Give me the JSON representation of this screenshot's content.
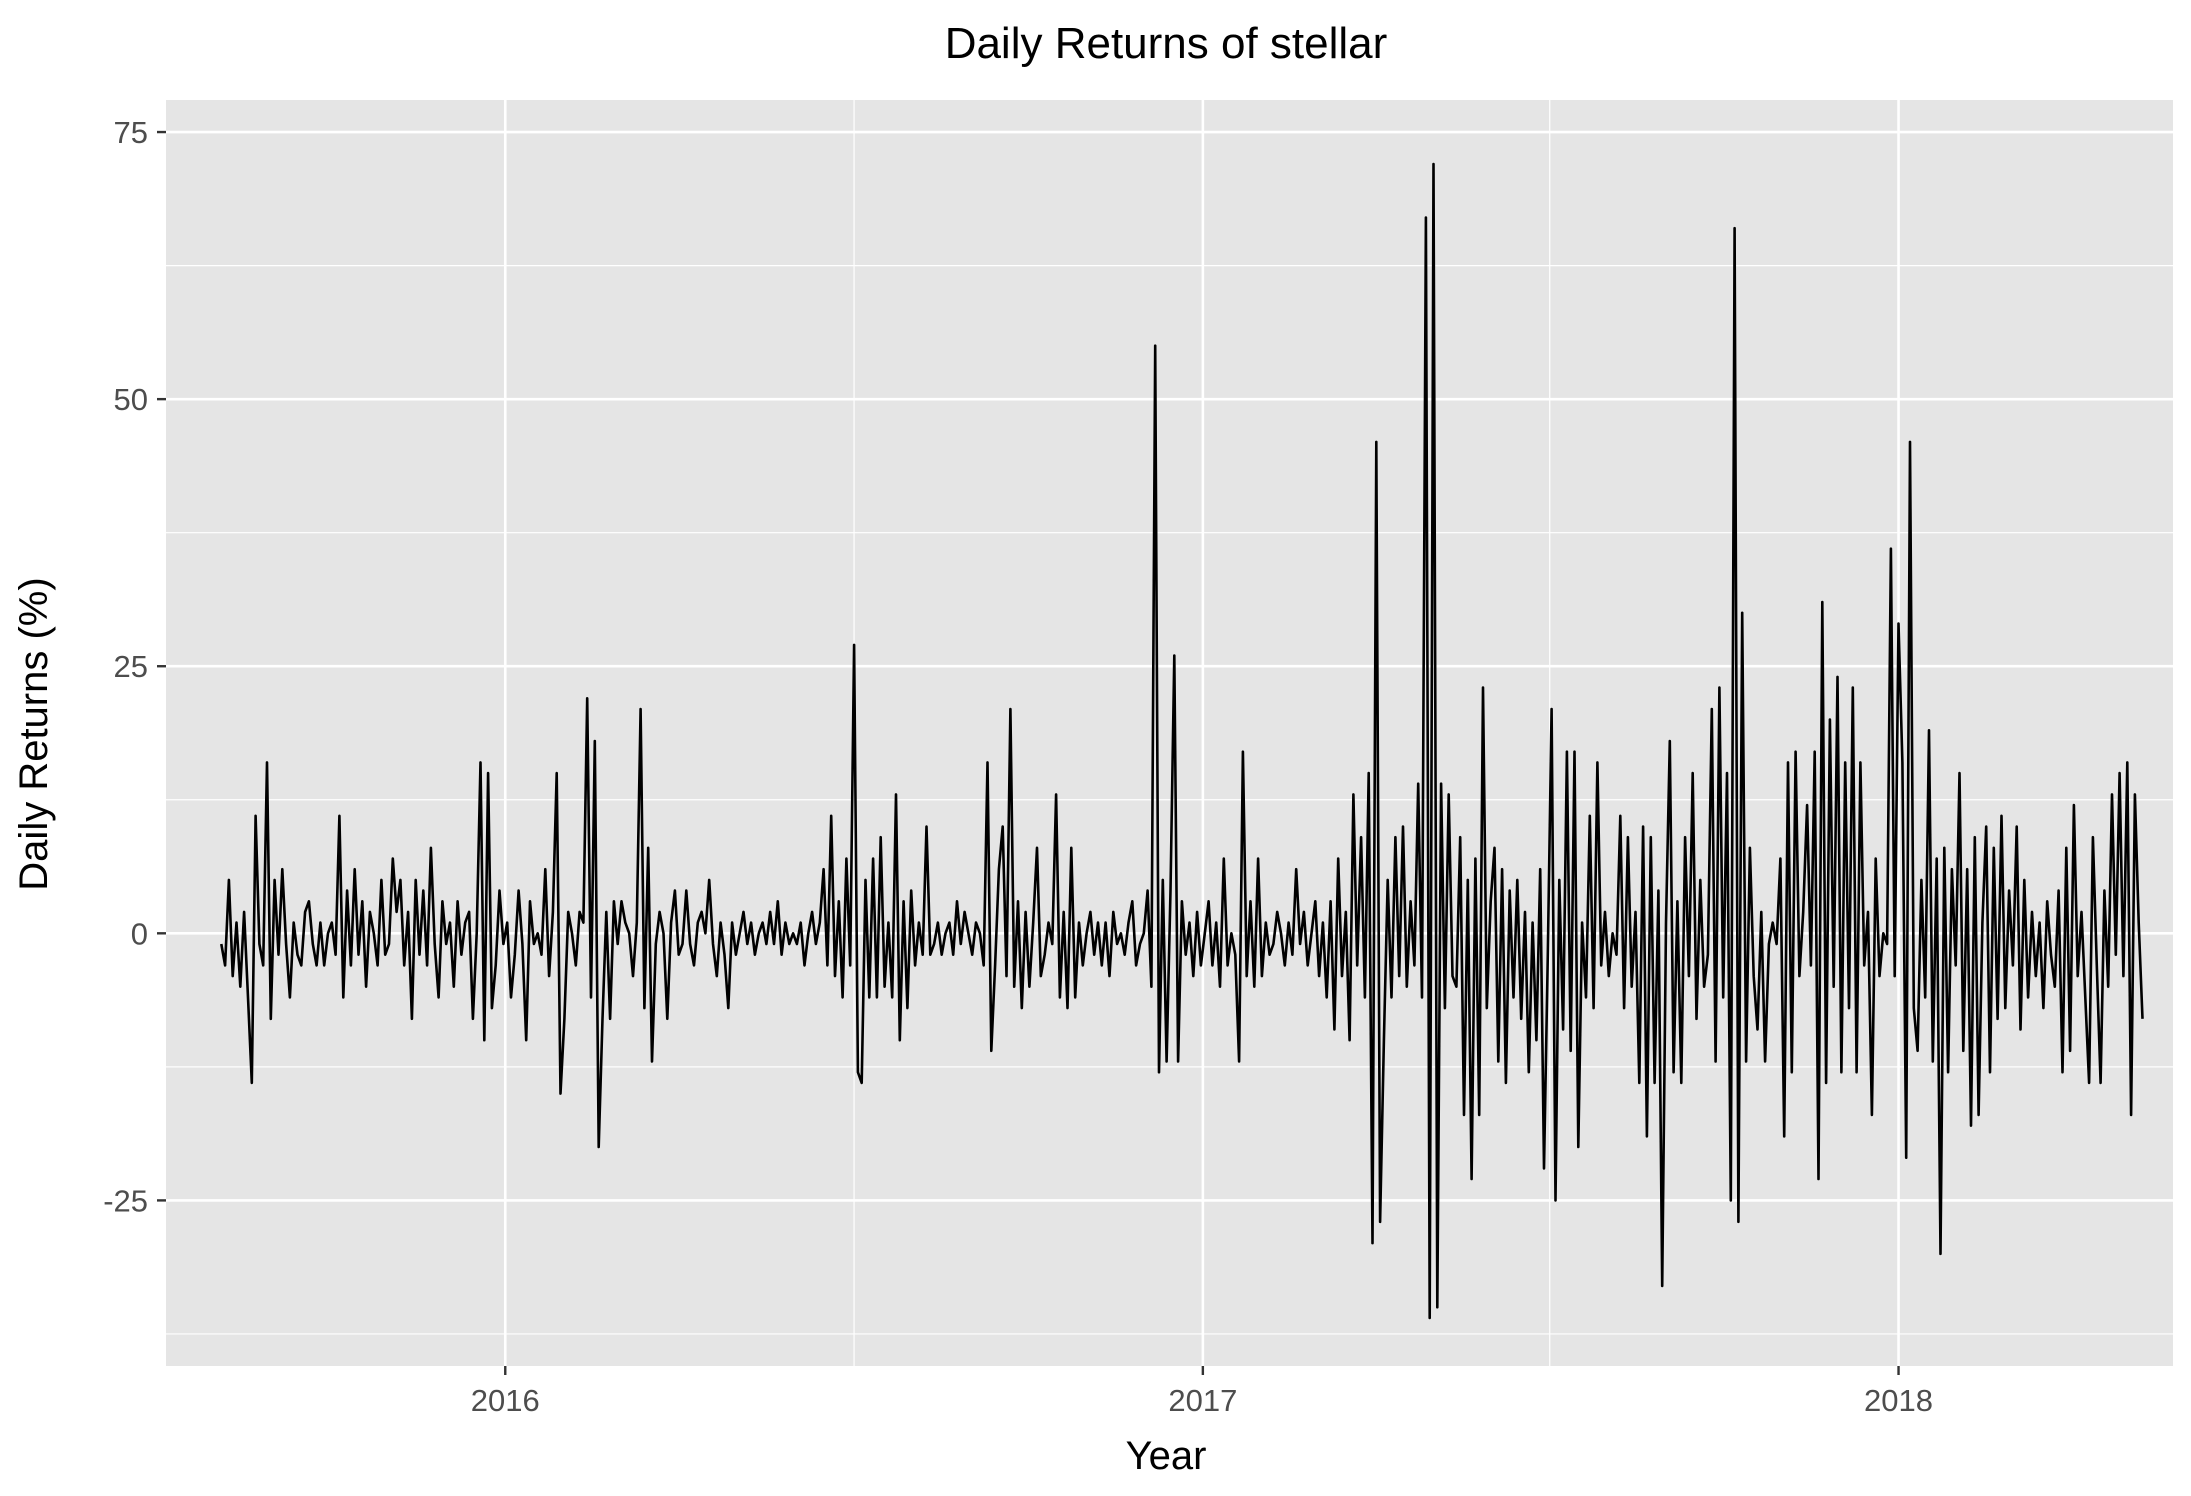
{
  "chart_data": {
    "type": "line",
    "title": "Daily Returns of stellar",
    "xlabel": "Year",
    "ylabel": "Daily Returns (%)",
    "x_ticks": [
      "2016",
      "2017",
      "2018"
    ],
    "y_ticks": [
      -25,
      0,
      25,
      50,
      75
    ],
    "x_range": [
      "2015-07-07",
      "2018-05-25"
    ],
    "ylim": [
      -40.5,
      78
    ],
    "grid": true,
    "line_color": "#000000",
    "panel_color": "#e5e5e5",
    "grid_color": "#ffffff",
    "series": [
      {
        "x": [
          "2015-08-05",
          "2015-08-07",
          "2015-08-09",
          "2015-08-11",
          "2015-08-13",
          "2015-08-15",
          "2015-08-17",
          "2015-08-19",
          "2015-08-21",
          "2015-08-23",
          "2015-08-25",
          "2015-08-27",
          "2015-08-29",
          "2015-08-31",
          "2015-09-02",
          "2015-09-04",
          "2015-09-06",
          "2015-09-08",
          "2015-09-10",
          "2015-09-12",
          "2015-09-14",
          "2015-09-16",
          "2015-09-18",
          "2015-09-20",
          "2015-09-22",
          "2015-09-24",
          "2015-09-26",
          "2015-09-28",
          "2015-09-30",
          "2015-10-02",
          "2015-10-04",
          "2015-10-06",
          "2015-10-08",
          "2015-10-10",
          "2015-10-12",
          "2015-10-14",
          "2015-10-16",
          "2015-10-18",
          "2015-10-20",
          "2015-10-22",
          "2015-10-24",
          "2015-10-26",
          "2015-10-28",
          "2015-10-30",
          "2015-11-01",
          "2015-11-03",
          "2015-11-05",
          "2015-11-07",
          "2015-11-09",
          "2015-11-11",
          "2015-11-13",
          "2015-11-15",
          "2015-11-17",
          "2015-11-19",
          "2015-11-21",
          "2015-11-23",
          "2015-11-25",
          "2015-11-27",
          "2015-11-29",
          "2015-12-01",
          "2015-12-03",
          "2015-12-05",
          "2015-12-07",
          "2015-12-09",
          "2015-12-11",
          "2015-12-13",
          "2015-12-15",
          "2015-12-17",
          "2015-12-19",
          "2015-12-21",
          "2015-12-23",
          "2015-12-25",
          "2015-12-27",
          "2015-12-29",
          "2015-12-31",
          "2016-01-02",
          "2016-01-04",
          "2016-01-06",
          "2016-01-08",
          "2016-01-10",
          "2016-01-12",
          "2016-01-14",
          "2016-01-16",
          "2016-01-18",
          "2016-01-20",
          "2016-01-22",
          "2016-01-24",
          "2016-01-26",
          "2016-01-28",
          "2016-01-30",
          "2016-02-01",
          "2016-02-03",
          "2016-02-05",
          "2016-02-07",
          "2016-02-09",
          "2016-02-11",
          "2016-02-13",
          "2016-02-15",
          "2016-02-17",
          "2016-02-19",
          "2016-02-21",
          "2016-02-23",
          "2016-02-25",
          "2016-02-27",
          "2016-02-29",
          "2016-03-02",
          "2016-03-04",
          "2016-03-06",
          "2016-03-08",
          "2016-03-10",
          "2016-03-12",
          "2016-03-14",
          "2016-03-16",
          "2016-03-18",
          "2016-03-20",
          "2016-03-22",
          "2016-03-24",
          "2016-03-26",
          "2016-03-28",
          "2016-03-30",
          "2016-04-01",
          "2016-04-03",
          "2016-04-05",
          "2016-04-07",
          "2016-04-09",
          "2016-04-11",
          "2016-04-13",
          "2016-04-15",
          "2016-04-17",
          "2016-04-19",
          "2016-04-21",
          "2016-04-23",
          "2016-04-25",
          "2016-04-27",
          "2016-04-29",
          "2016-05-01",
          "2016-05-03",
          "2016-05-05",
          "2016-05-07",
          "2016-05-09",
          "2016-05-11",
          "2016-05-13",
          "2016-05-15",
          "2016-05-17",
          "2016-05-19",
          "2016-05-21",
          "2016-05-23",
          "2016-05-25",
          "2016-05-27",
          "2016-05-29",
          "2016-05-31",
          "2016-06-02",
          "2016-06-04",
          "2016-06-06",
          "2016-06-08",
          "2016-06-10",
          "2016-06-12",
          "2016-06-14",
          "2016-06-16",
          "2016-06-18",
          "2016-06-20",
          "2016-06-22",
          "2016-06-24",
          "2016-06-26",
          "2016-06-28",
          "2016-06-30",
          "2016-07-02",
          "2016-07-04",
          "2016-07-06",
          "2016-07-08",
          "2016-07-10",
          "2016-07-12",
          "2016-07-14",
          "2016-07-16",
          "2016-07-18",
          "2016-07-20",
          "2016-07-22",
          "2016-07-24",
          "2016-07-26",
          "2016-07-28",
          "2016-07-30",
          "2016-08-01",
          "2016-08-03",
          "2016-08-05",
          "2016-08-07",
          "2016-08-09",
          "2016-08-11",
          "2016-08-13",
          "2016-08-15",
          "2016-08-17",
          "2016-08-19",
          "2016-08-21",
          "2016-08-23",
          "2016-08-25",
          "2016-08-27",
          "2016-08-29",
          "2016-08-31",
          "2016-09-02",
          "2016-09-04",
          "2016-09-06",
          "2016-09-08",
          "2016-09-10",
          "2016-09-12",
          "2016-09-14",
          "2016-09-16",
          "2016-09-18",
          "2016-09-20",
          "2016-09-22",
          "2016-09-24",
          "2016-09-26",
          "2016-09-28",
          "2016-09-30",
          "2016-10-02",
          "2016-10-04",
          "2016-10-06",
          "2016-10-08",
          "2016-10-10",
          "2016-10-12",
          "2016-10-14",
          "2016-10-16",
          "2016-10-18",
          "2016-10-20",
          "2016-10-22",
          "2016-10-24",
          "2016-10-26",
          "2016-10-28",
          "2016-10-30",
          "2016-11-01",
          "2016-11-03",
          "2016-11-05",
          "2016-11-07",
          "2016-11-09",
          "2016-11-11",
          "2016-11-13",
          "2016-11-15",
          "2016-11-17",
          "2016-11-19",
          "2016-11-21",
          "2016-11-23",
          "2016-11-25",
          "2016-11-27",
          "2016-11-29",
          "2016-12-01",
          "2016-12-03",
          "2016-12-05",
          "2016-12-07",
          "2016-12-09",
          "2016-12-11",
          "2016-12-13",
          "2016-12-15",
          "2016-12-17",
          "2016-12-19",
          "2016-12-21",
          "2016-12-23",
          "2016-12-25",
          "2016-12-27",
          "2016-12-29",
          "2016-12-31",
          "2017-01-02",
          "2017-01-04",
          "2017-01-06",
          "2017-01-08",
          "2017-01-10",
          "2017-01-12",
          "2017-01-14",
          "2017-01-16",
          "2017-01-18",
          "2017-01-20",
          "2017-01-22",
          "2017-01-24",
          "2017-01-26",
          "2017-01-28",
          "2017-01-30",
          "2017-02-01",
          "2017-02-03",
          "2017-02-05",
          "2017-02-07",
          "2017-02-09",
          "2017-02-11",
          "2017-02-13",
          "2017-02-15",
          "2017-02-17",
          "2017-02-19",
          "2017-02-21",
          "2017-02-23",
          "2017-02-25",
          "2017-02-27",
          "2017-03-01",
          "2017-03-03",
          "2017-03-05",
          "2017-03-07",
          "2017-03-09",
          "2017-03-11",
          "2017-03-13",
          "2017-03-15",
          "2017-03-17",
          "2017-03-19",
          "2017-03-21",
          "2017-03-23",
          "2017-03-25",
          "2017-03-27",
          "2017-03-29",
          "2017-03-31",
          "2017-04-02",
          "2017-04-04",
          "2017-04-06",
          "2017-04-08",
          "2017-04-10",
          "2017-04-12",
          "2017-04-14",
          "2017-04-16",
          "2017-04-18",
          "2017-04-20",
          "2017-04-22",
          "2017-04-24",
          "2017-04-26",
          "2017-04-28",
          "2017-04-30",
          "2017-05-02",
          "2017-05-04",
          "2017-05-06",
          "2017-05-08",
          "2017-05-10",
          "2017-05-12",
          "2017-05-14",
          "2017-05-16",
          "2017-05-18",
          "2017-05-20",
          "2017-05-22",
          "2017-05-24",
          "2017-05-26",
          "2017-05-28",
          "2017-05-30",
          "2017-06-01",
          "2017-06-03",
          "2017-06-05",
          "2017-06-07",
          "2017-06-09",
          "2017-06-11",
          "2017-06-13",
          "2017-06-15",
          "2017-06-17",
          "2017-06-19",
          "2017-06-21",
          "2017-06-23",
          "2017-06-25",
          "2017-06-27",
          "2017-06-29",
          "2017-07-01",
          "2017-07-03",
          "2017-07-05",
          "2017-07-07",
          "2017-07-09",
          "2017-07-11",
          "2017-07-13",
          "2017-07-15",
          "2017-07-17",
          "2017-07-19",
          "2017-07-21",
          "2017-07-23",
          "2017-07-25",
          "2017-07-27",
          "2017-07-29",
          "2017-07-31",
          "2017-08-02",
          "2017-08-04",
          "2017-08-06",
          "2017-08-08",
          "2017-08-10",
          "2017-08-12",
          "2017-08-14",
          "2017-08-16",
          "2017-08-18",
          "2017-08-20",
          "2017-08-22",
          "2017-08-24",
          "2017-08-26",
          "2017-08-28",
          "2017-08-30",
          "2017-09-01",
          "2017-09-03",
          "2017-09-05",
          "2017-09-07",
          "2017-09-09",
          "2017-09-11",
          "2017-09-13",
          "2017-09-15",
          "2017-09-17",
          "2017-09-19",
          "2017-09-21",
          "2017-09-23",
          "2017-09-25",
          "2017-09-27",
          "2017-09-29",
          "2017-10-01",
          "2017-10-03",
          "2017-10-05",
          "2017-10-07",
          "2017-10-09",
          "2017-10-11",
          "2017-10-13",
          "2017-10-15",
          "2017-10-17",
          "2017-10-19",
          "2017-10-21",
          "2017-10-23",
          "2017-10-25",
          "2017-10-27",
          "2017-10-29",
          "2017-10-31",
          "2017-11-02",
          "2017-11-04",
          "2017-11-06",
          "2017-11-08",
          "2017-11-10",
          "2017-11-12",
          "2017-11-14",
          "2017-11-16",
          "2017-11-18",
          "2017-11-20",
          "2017-11-22",
          "2017-11-24",
          "2017-11-26",
          "2017-11-28",
          "2017-11-30",
          "2017-12-02",
          "2017-12-04",
          "2017-12-06",
          "2017-12-08",
          "2017-12-10",
          "2017-12-12",
          "2017-12-14",
          "2017-12-16",
          "2017-12-18",
          "2017-12-20",
          "2017-12-22",
          "2017-12-24",
          "2017-12-26",
          "2017-12-28",
          "2017-12-30",
          "2018-01-01",
          "2018-01-03",
          "2018-01-05",
          "2018-01-07",
          "2018-01-09",
          "2018-01-11",
          "2018-01-13",
          "2018-01-15",
          "2018-01-17",
          "2018-01-19",
          "2018-01-21",
          "2018-01-23",
          "2018-01-25",
          "2018-01-27",
          "2018-01-29",
          "2018-01-31",
          "2018-02-02",
          "2018-02-04",
          "2018-02-06",
          "2018-02-08",
          "2018-02-10",
          "2018-02-12",
          "2018-02-14",
          "2018-02-16",
          "2018-02-18",
          "2018-02-20",
          "2018-02-22",
          "2018-02-24",
          "2018-02-26",
          "2018-02-28",
          "2018-03-02",
          "2018-03-04",
          "2018-03-06",
          "2018-03-08",
          "2018-03-10",
          "2018-03-12",
          "2018-03-14",
          "2018-03-16",
          "2018-03-18",
          "2018-03-20",
          "2018-03-22",
          "2018-03-24",
          "2018-03-26",
          "2018-03-28",
          "2018-03-30",
          "2018-04-01",
          "2018-04-03",
          "2018-04-05",
          "2018-04-07",
          "2018-04-09",
          "2018-04-11",
          "2018-04-13",
          "2018-04-15",
          "2018-04-17",
          "2018-04-19",
          "2018-04-21",
          "2018-04-23",
          "2018-04-25",
          "2018-04-27",
          "2018-04-29",
          "2018-05-01",
          "2018-05-03",
          "2018-05-05",
          "2018-05-07",
          "2018-05-09"
        ],
        "values": [
          -1,
          -3,
          5,
          -4,
          1,
          -5,
          2,
          -6,
          -14,
          11,
          -1,
          -3,
          16,
          -8,
          5,
          -2,
          6,
          -1,
          -6,
          1,
          -2,
          -3,
          2,
          3,
          -1,
          -3,
          1,
          -3,
          0,
          1,
          -2,
          11,
          -6,
          4,
          -3,
          6,
          -2,
          3,
          -5,
          2,
          0,
          -3,
          5,
          -2,
          -1,
          7,
          2,
          5,
          -3,
          2,
          -8,
          5,
          -2,
          4,
          -3,
          8,
          -1,
          -6,
          3,
          -1,
          1,
          -5,
          3,
          -2,
          1,
          2,
          -8,
          0,
          16,
          -10,
          15,
          -7,
          -3,
          4,
          -1,
          1,
          -6,
          -2,
          4,
          -1,
          -10,
          3,
          -1,
          0,
          -2,
          6,
          -4,
          2,
          15,
          -15,
          -8,
          2,
          0,
          -3,
          2,
          1,
          22,
          -6,
          18,
          -20,
          -8,
          2,
          -8,
          3,
          -1,
          3,
          1,
          0,
          -4,
          1,
          21,
          -7,
          8,
          -12,
          -1,
          2,
          0,
          -8,
          1,
          4,
          -2,
          -1,
          4,
          -1,
          -3,
          1,
          2,
          0,
          5,
          -1,
          -4,
          1,
          -2,
          -7,
          1,
          -2,
          0,
          2,
          -1,
          1,
          -2,
          0,
          1,
          -1,
          2,
          -1,
          3,
          -2,
          1,
          -1,
          0,
          -1,
          1,
          -3,
          0,
          2,
          -1,
          1,
          6,
          -3,
          11,
          -4,
          3,
          -6,
          7,
          -3,
          27,
          -13,
          -14,
          5,
          -6,
          7,
          -6,
          9,
          -5,
          1,
          -6,
          13,
          -10,
          3,
          -7,
          4,
          -3,
          1,
          -2,
          10,
          -2,
          -1,
          1,
          -2,
          0,
          1,
          -2,
          3,
          -1,
          2,
          0,
          -2,
          1,
          0,
          -3,
          16,
          -11,
          -3,
          6,
          10,
          -4,
          21,
          -5,
          3,
          -7,
          2,
          -5,
          1,
          8,
          -4,
          -2,
          1,
          -1,
          13,
          -6,
          2,
          -7,
          8,
          -6,
          1,
          -3,
          0,
          2,
          -2,
          1,
          -3,
          1,
          -4,
          2,
          -1,
          0,
          -2,
          1,
          3,
          -3,
          -1,
          0,
          4,
          -5,
          55,
          -13,
          5,
          -12,
          4,
          26,
          -12,
          3,
          -2,
          1,
          -4,
          2,
          -3,
          0,
          3,
          -3,
          1,
          -5,
          7,
          -3,
          0,
          -2,
          -12,
          17,
          -4,
          3,
          -5,
          7,
          -4,
          1,
          -2,
          -1,
          2,
          0,
          -3,
          1,
          -2,
          6,
          -1,
          2,
          -3,
          0,
          3,
          -4,
          1,
          -6,
          3,
          -9,
          7,
          -4,
          2,
          -10,
          13,
          -3,
          9,
          -6,
          15,
          -29,
          46,
          -27,
          -10,
          5,
          -6,
          9,
          -4,
          10,
          -5,
          3,
          -3,
          14,
          -6,
          67,
          -36,
          72,
          -35,
          14,
          -7,
          13,
          -4,
          -5,
          9,
          -17,
          5,
          -23,
          7,
          -17,
          23,
          -7,
          3,
          8,
          -12,
          6,
          -14,
          4,
          -6,
          5,
          -8,
          2,
          -13,
          1,
          -10,
          6,
          -22,
          -2,
          21,
          -25,
          5,
          -9,
          17,
          -11,
          17,
          -20,
          1,
          -6,
          11,
          -7,
          16,
          -3,
          2,
          -4,
          0,
          -2,
          11,
          -7,
          9,
          -5,
          2,
          -14,
          10,
          -19,
          9,
          -14,
          4,
          -33,
          1,
          18,
          -13,
          3,
          -14,
          9,
          -4,
          15,
          -8,
          5,
          -5,
          -2,
          21,
          -12,
          23,
          -6,
          15,
          -25,
          66,
          -27,
          30,
          -12,
          8,
          -4,
          -9,
          2,
          -12,
          -1,
          1,
          -1,
          7,
          -19,
          16,
          -13,
          17,
          -4,
          2,
          12,
          -3,
          17,
          -23,
          31,
          -14,
          20,
          -5,
          24,
          -13,
          16,
          -7,
          23,
          -13,
          16,
          -3,
          2,
          -17,
          7,
          -4,
          0,
          -1,
          36,
          -4,
          29,
          16,
          -21,
          46,
          -7,
          -11,
          5,
          -6,
          19,
          -12,
          7,
          -30,
          8,
          -13,
          6,
          -3,
          15,
          -11,
          6,
          -18,
          9,
          -17,
          1,
          10,
          -13,
          8,
          -8,
          11,
          -7,
          4,
          -3,
          10,
          -9,
          5,
          -6,
          2,
          -4,
          1,
          -7,
          3,
          -2,
          -5,
          4,
          -13,
          8,
          -11,
          12,
          -4,
          2,
          -6,
          -14,
          9,
          -3,
          -14,
          4,
          -5,
          13,
          -2,
          15,
          -4,
          16,
          -17,
          13,
          1,
          -8
        ]
      }
    ]
  }
}
